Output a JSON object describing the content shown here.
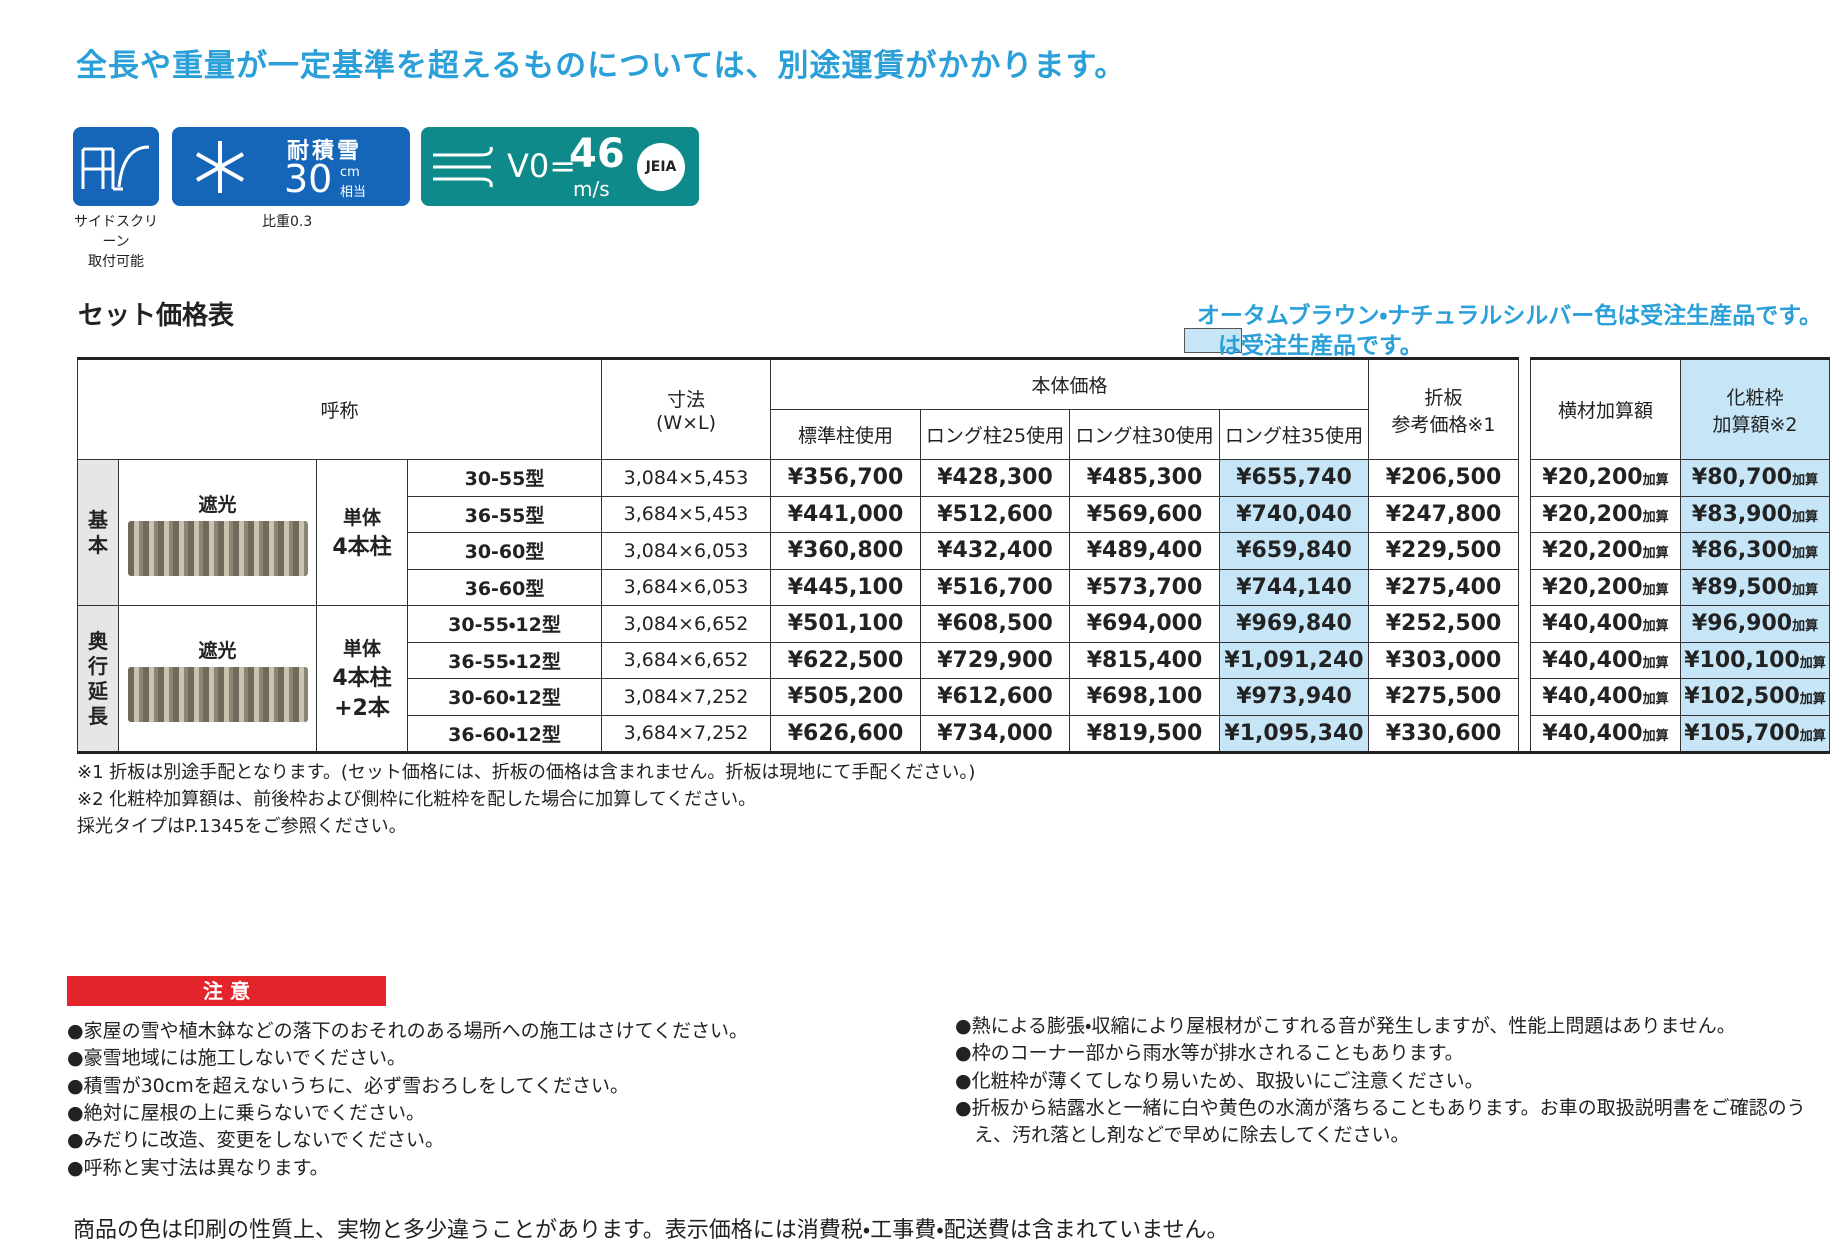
{
  "header": {
    "notice": "全長や重量が一定基準を超えるものについては、別途運賃がかかります。"
  },
  "badges": {
    "side_screen": {
      "caption_1": "サイドスクリーン",
      "caption_2": "取付可能"
    },
    "snow": {
      "label": "耐積雪",
      "value": "30",
      "unit": "cm",
      "suffix": "相当",
      "caption": "比重0.3"
    },
    "wind": {
      "prefix": "V0=",
      "value": "46",
      "unit": "m/s",
      "mark": "JEIA"
    }
  },
  "table": {
    "title": "セット価格表",
    "note_1": "オータムブラウン・ナチュラルシルバー色は受注生産品です。",
    "note_2": "は受注生産品です。",
    "headers": {
      "name": "呼称",
      "size_1": "寸法",
      "size_2": "(W×L)",
      "body_price": "本体価格",
      "prices": [
        "標準柱使用",
        "ロング柱25使用",
        "ロング柱30使用",
        "ロング柱35使用"
      ],
      "oriban_1": "折板",
      "oriban_2": "参考価格※1",
      "yokozai": "横材加算額",
      "kesho_1": "化粧枠",
      "kesho_2": "加算額※2"
    },
    "add_label": "加算",
    "groups": [
      {
        "label": "基本",
        "type": "遮光",
        "posts": [
          "単体",
          "4本柱"
        ],
        "rows": [
          {
            "model": "30-55型",
            "size": "3,084×5,453",
            "prices": [
              "¥356,700",
              "¥428,300",
              "¥485,300",
              "¥655,740"
            ],
            "oriban": "¥206,500",
            "yokozai": "¥20,200",
            "kesho": "¥80,700"
          },
          {
            "model": "36-55型",
            "size": "3,684×5,453",
            "prices": [
              "¥441,000",
              "¥512,600",
              "¥569,600",
              "¥740,040"
            ],
            "oriban": "¥247,800",
            "yokozai": "¥20,200",
            "kesho": "¥83,900"
          },
          {
            "model": "30-60型",
            "size": "3,084×6,053",
            "prices": [
              "¥360,800",
              "¥432,400",
              "¥489,400",
              "¥659,840"
            ],
            "oriban": "¥229,500",
            "yokozai": "¥20,200",
            "kesho": "¥86,300"
          },
          {
            "model": "36-60型",
            "size": "3,684×6,053",
            "prices": [
              "¥445,100",
              "¥516,700",
              "¥573,700",
              "¥744,140"
            ],
            "oriban": "¥275,400",
            "yokozai": "¥20,200",
            "kesho": "¥89,500"
          }
        ]
      },
      {
        "label": "奥行延長",
        "type": "遮光",
        "posts": [
          "単体",
          "4本柱",
          "+2本"
        ],
        "rows": [
          {
            "model": "30-55・12型",
            "size": "3,084×6,652",
            "prices": [
              "¥501,100",
              "¥608,500",
              "¥694,000",
              "¥969,840"
            ],
            "oriban": "¥252,500",
            "yokozai": "¥40,400",
            "kesho": "¥96,900"
          },
          {
            "model": "36-55・12型",
            "size": "3,684×6,652",
            "prices": [
              "¥622,500",
              "¥729,900",
              "¥815,400",
              "¥1,091,240"
            ],
            "oriban": "¥303,000",
            "yokozai": "¥40,400",
            "kesho": "¥100,100"
          },
          {
            "model": "30-60・12型",
            "size": "3,084×7,252",
            "prices": [
              "¥505,200",
              "¥612,600",
              "¥698,100",
              "¥973,940"
            ],
            "oriban": "¥275,500",
            "yokozai": "¥40,400",
            "kesho": "¥102,500"
          },
          {
            "model": "36-60・12型",
            "size": "3,684×7,252",
            "prices": [
              "¥626,600",
              "¥734,000",
              "¥819,500",
              "¥1,095,340"
            ],
            "oriban": "¥330,600",
            "yokozai": "¥40,400",
            "kesho": "¥105,700"
          }
        ]
      }
    ],
    "footnotes": [
      "※1 折板は別途手配となります。(セット価格には、折板の価格は含まれません。折板は現地にて手配ください。)",
      "※2 化粧枠加算額は、前後枠および側枠に化粧枠を配した場合に加算してください。",
      "採光タイプはP.1345をご参照ください。"
    ]
  },
  "caution": {
    "title": "注 意",
    "left": [
      "●家屋の雪や植木鉢などの落下のおそれのある場所への施工はさけてください。",
      "●豪雪地域には施工しないでください。",
      "●積雪が30cmを超えないうちに、必ず雪おろしをしてください。",
      "●絶対に屋根の上に乗らないでください。",
      "●みだりに改造、変更をしないでください。",
      "●呼称と実寸法は異なります。"
    ],
    "right": [
      "●熱による膨張・収縮により屋根材がこすれる音が発生しますが、性能上問題はありません。",
      "●枠のコーナー部から雨水等が排水されることもあります。",
      "●化粧枠が薄くてしなり易いため、取扱いにご注意ください。",
      "●折板から結露水と一緒に白や黄色の水滴が落ちることもあります。お車の取扱説明書をご確認のうえ、汚れ落とし剤などで早めに除去してください。"
    ]
  },
  "footer": "商品の色は印刷の性質上、実物と多少違うことがあります。表示価格には消費税・工事費・配送費は含まれていません。"
}
